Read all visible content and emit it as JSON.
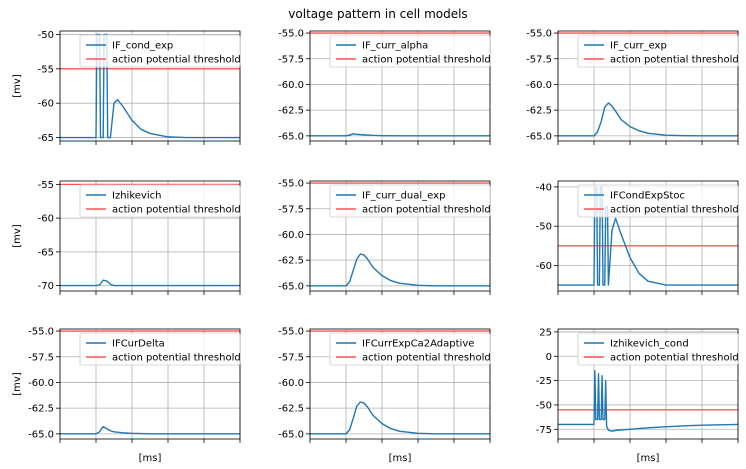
{
  "figure": {
    "suptitle": "voltage pattern in cell models",
    "threshold_label": "action potential threshold",
    "colors": {
      "trace": "#1f77b4",
      "threshold": "#ff5555"
    }
  },
  "chart_data": [
    {
      "type": "line",
      "name": "IF_cond_exp",
      "ylabel": "[mv]",
      "xlabel": "",
      "ylim": [
        -65.5,
        -49.5
      ],
      "yticks": [
        -65,
        -60,
        -55,
        -50
      ],
      "threshold": -55,
      "grid": true,
      "legend": "top",
      "x": [
        0,
        5,
        10,
        15,
        19,
        20,
        20.5,
        22,
        22.5,
        24,
        24.5,
        26,
        26.5,
        28,
        30,
        32,
        35,
        40,
        45,
        50,
        60,
        70,
        80,
        100
      ],
      "y": [
        -65,
        -65,
        -65,
        -65,
        -65,
        -65,
        -50,
        -50,
        -65,
        -65,
        -50,
        -50,
        -65,
        -65,
        -60,
        -59.5,
        -60.5,
        -62.5,
        -63.8,
        -64.4,
        -64.9,
        -65,
        -65,
        -65
      ]
    },
    {
      "type": "line",
      "name": "IF_curr_alpha",
      "ylabel": "",
      "xlabel": "",
      "ylim": [
        -65.5,
        -54.8
      ],
      "yticks": [
        -65.0,
        -62.5,
        -60.0,
        -57.5,
        -55.0
      ],
      "threshold": -55,
      "grid": true,
      "legend": "top",
      "x": [
        0,
        20,
        22,
        24,
        26,
        30,
        35,
        40,
        50,
        60,
        80,
        100
      ],
      "y": [
        -65,
        -65,
        -64.92,
        -64.8,
        -64.85,
        -64.9,
        -64.95,
        -64.98,
        -65,
        -65,
        -65,
        -65
      ]
    },
    {
      "type": "line",
      "name": "IF_curr_exp",
      "ylabel": "",
      "xlabel": "",
      "ylim": [
        -65.5,
        -54.8
      ],
      "yticks": [
        -65.0,
        -62.5,
        -60.0,
        -57.5,
        -55.0
      ],
      "threshold": -55,
      "grid": true,
      "legend": "top",
      "x": [
        0,
        20,
        22,
        24,
        26,
        28,
        30,
        32,
        35,
        40,
        45,
        50,
        60,
        70,
        80,
        100
      ],
      "y": [
        -65,
        -65,
        -64.6,
        -63.6,
        -62.2,
        -61.8,
        -62.1,
        -62.6,
        -63.4,
        -64.1,
        -64.5,
        -64.75,
        -64.93,
        -64.98,
        -65,
        -65
      ]
    },
    {
      "type": "line",
      "name": "Izhikevich",
      "ylabel": "[mv]",
      "xlabel": "",
      "ylim": [
        -70.8,
        -54.5
      ],
      "yticks": [
        -70,
        -65,
        -60,
        -55
      ],
      "threshold": -55,
      "grid": true,
      "legend": "top",
      "x": [
        0,
        15,
        20,
        22,
        24,
        26,
        28,
        30,
        35,
        40,
        60,
        80,
        100
      ],
      "y": [
        -70,
        -70,
        -70,
        -69.9,
        -69.2,
        -69.3,
        -69.8,
        -70,
        -70,
        -70,
        -70,
        -70,
        -70
      ]
    },
    {
      "type": "line",
      "name": "IF_curr_dual_exp",
      "ylabel": "",
      "xlabel": "",
      "ylim": [
        -65.5,
        -54.8
      ],
      "yticks": [
        -65.0,
        -62.5,
        -60.0,
        -57.5,
        -55.0
      ],
      "threshold": -55,
      "grid": true,
      "legend": "top",
      "x": [
        0,
        20,
        22,
        24,
        26,
        28,
        30,
        32,
        35,
        40,
        45,
        50,
        60,
        70,
        80,
        100
      ],
      "y": [
        -65,
        -65,
        -64.6,
        -63.5,
        -62.4,
        -61.9,
        -62.0,
        -62.4,
        -63.2,
        -64.0,
        -64.5,
        -64.75,
        -64.95,
        -65,
        -65,
        -65
      ]
    },
    {
      "type": "line",
      "name": "IFCondExpStoc",
      "ylabel": "",
      "xlabel": "",
      "ylim": [
        -66.5,
        -38.5
      ],
      "yticks": [
        -60,
        -50,
        -40
      ],
      "threshold": -55,
      "grid": true,
      "legend": "top",
      "x": [
        0,
        20,
        20.5,
        21.5,
        22,
        23,
        23.5,
        24.5,
        25,
        26,
        26.5,
        27.5,
        28,
        30,
        32,
        35,
        40,
        45,
        50,
        60,
        80,
        100
      ],
      "y": [
        -65,
        -65,
        -40,
        -40,
        -65,
        -65,
        -40,
        -40,
        -65,
        -65,
        -45,
        -45,
        -65,
        -51,
        -48,
        -52,
        -58,
        -62,
        -64,
        -65,
        -65,
        -65
      ]
    },
    {
      "type": "line",
      "name": "IFCurDelta",
      "ylabel": "[mv]",
      "xlabel": "[ms]",
      "ylim": [
        -65.5,
        -54.8
      ],
      "yticks": [
        -65.0,
        -62.5,
        -60.0,
        -57.5,
        -55.0
      ],
      "threshold": -55,
      "grid": true,
      "legend": "top",
      "x": [
        0,
        20,
        22,
        23,
        24,
        26,
        28,
        30,
        35,
        40,
        50,
        60,
        80,
        100
      ],
      "y": [
        -65,
        -65,
        -64.8,
        -64.5,
        -64.3,
        -64.5,
        -64.7,
        -64.8,
        -64.9,
        -64.95,
        -65,
        -65,
        -65,
        -65
      ]
    },
    {
      "type": "line",
      "name": "IFCurrExpCa2Adaptive",
      "ylabel": "",
      "xlabel": "[ms]",
      "ylim": [
        -65.5,
        -54.8
      ],
      "yticks": [
        -65.0,
        -62.5,
        -60.0,
        -57.5,
        -55.0
      ],
      "threshold": -55,
      "grid": true,
      "legend": "top",
      "x": [
        0,
        20,
        22,
        24,
        26,
        28,
        30,
        32,
        35,
        40,
        45,
        50,
        60,
        70,
        80,
        100
      ],
      "y": [
        -65,
        -65,
        -64.6,
        -63.5,
        -62.3,
        -61.9,
        -62.0,
        -62.4,
        -63.2,
        -64.0,
        -64.5,
        -64.75,
        -64.95,
        -65,
        -65,
        -65
      ]
    },
    {
      "type": "line",
      "name": "Izhikevich_cond",
      "ylabel": "",
      "xlabel": "[ms]",
      "ylim": [
        -85,
        28
      ],
      "yticks": [
        -75,
        -50,
        -25,
        0,
        25
      ],
      "threshold": -55,
      "grid": true,
      "legend": "top",
      "x": [
        0,
        15,
        20,
        20.5,
        21,
        22,
        22.5,
        23,
        24,
        24.5,
        25,
        26,
        26.5,
        27,
        28,
        30,
        33,
        40,
        50,
        60,
        70,
        80,
        90,
        100
      ],
      "y": [
        -70,
        -70,
        -70,
        -15,
        -65,
        -65,
        -18,
        -65,
        -65,
        -20,
        -65,
        -65,
        -25,
        -72,
        -76,
        -77,
        -76,
        -75,
        -73.5,
        -72.5,
        -71.5,
        -70.8,
        -70.4,
        -70
      ]
    }
  ]
}
